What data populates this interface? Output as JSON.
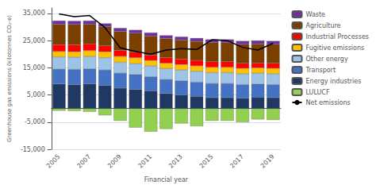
{
  "chart_data": {
    "type": "bar",
    "stacked": true,
    "xlabel": "Financial year",
    "ylabel": "Greenhouse gas emissions (kilotonnes CO₂-e)",
    "categories": [
      "2005",
      null,
      "2007",
      null,
      "2009",
      null,
      "2011",
      null,
      "2013",
      null,
      "2015",
      null,
      "2017",
      null,
      "2019"
    ],
    "series": [
      {
        "name": "LULUCF",
        "type": "bar",
        "color": "#92d050",
        "values": [
          -800,
          -900,
          -1200,
          -2500,
          -4500,
          -7000,
          -8500,
          -7500,
          -5500,
          -6500,
          -4500,
          -4500,
          -5000,
          -4000,
          -4200
        ]
      },
      {
        "name": "Energy industries",
        "type": "bar",
        "color": "#1f3864",
        "values": [
          9000,
          8800,
          9000,
          8500,
          7500,
          7000,
          6500,
          5500,
          5000,
          4500,
          4000,
          4000,
          3800,
          4200,
          4000
        ]
      },
      {
        "name": "Transport",
        "type": "bar",
        "color": "#4472c4",
        "values": [
          5500,
          5600,
          5600,
          5700,
          5500,
          5500,
          5200,
          5200,
          5200,
          5200,
          5200,
          5200,
          5000,
          4800,
          4800
        ]
      },
      {
        "name": "Other energy",
        "type": "bar",
        "color": "#9dc3e6",
        "values": [
          4500,
          4500,
          4500,
          4500,
          4000,
          4000,
          4000,
          4000,
          4000,
          4000,
          4000,
          4000,
          4000,
          4000,
          4000
        ]
      },
      {
        "name": "Fugitive emissions",
        "type": "bar",
        "color": "#ffc000",
        "values": [
          2000,
          2000,
          2200,
          2200,
          2200,
          2200,
          2000,
          2000,
          2000,
          2000,
          2000,
          2000,
          2000,
          2000,
          2000
        ]
      },
      {
        "name": "Industrial Processes",
        "type": "bar",
        "color": "#ff0000",
        "values": [
          2500,
          2500,
          2500,
          2200,
          2200,
          2000,
          2000,
          2000,
          2000,
          2000,
          2000,
          2000,
          1800,
          1800,
          1800
        ]
      },
      {
        "name": "Agriculture",
        "type": "bar",
        "color": "#7b3f00",
        "values": [
          7500,
          7500,
          7200,
          7000,
          7000,
          7000,
          7000,
          7000,
          7000,
          7000,
          7000,
          7000,
          7000,
          7000,
          7000
        ]
      },
      {
        "name": "Waste",
        "type": "bar",
        "color": "#7030a0",
        "values": [
          1300,
          1300,
          1300,
          1200,
          1200,
          1200,
          1200,
          1200,
          1200,
          1200,
          1200,
          1200,
          1200,
          1200,
          1200
        ]
      },
      {
        "name": "Net emissions",
        "type": "line",
        "color": "#000000",
        "values": [
          34800,
          33800,
          34200,
          29800,
          22300,
          21000,
          20000,
          21500,
          22000,
          21700,
          25300,
          25000,
          22500,
          21500,
          24000
        ]
      }
    ],
    "ylim": [
      -15000,
      37000
    ],
    "yticks": [
      {
        "value": -15000,
        "label": "-15,000"
      },
      {
        "value": -5000,
        "label": "-5,000"
      },
      {
        "value": 5000,
        "label": "5,000"
      },
      {
        "value": 15000,
        "label": "15,000"
      },
      {
        "value": 25000,
        "label": "25,000"
      },
      {
        "value": 35000,
        "label": "35,000"
      }
    ],
    "grid": true,
    "legend": "right"
  }
}
